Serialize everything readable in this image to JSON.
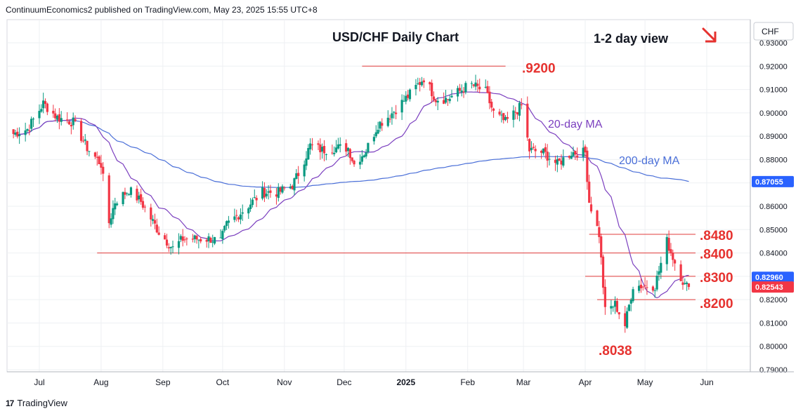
{
  "header": {
    "publisher_line": "ContinuumEconomics2 published on TradingView.com, May 23, 2025 15:55 UTC+8"
  },
  "footer": {
    "brand": "TradingView",
    "logo_glyph": "17"
  },
  "colors": {
    "up_candle": "#089981",
    "down_candle": "#f23645",
    "ma20": "#7b3fbf",
    "ma200": "#4a6fd8",
    "level_line": "#e03b3b",
    "level_text": "#e6322f",
    "last_price_tag": "#f23645",
    "ma_tag": "#2962ff"
  },
  "chart_data": {
    "type": "candlestick",
    "title": "USD/CHF Daily Chart",
    "subtitle": "1-2 day view",
    "outlook_arrow": "down-right-arrow",
    "currency_label": "CHF",
    "x_ticks": [
      "Jul",
      "Aug",
      "Sep",
      "Oct",
      "Nov",
      "Dec",
      "2025",
      "Feb",
      "Mar",
      "Apr",
      "May",
      "Jun"
    ],
    "y_ticks": [
      "0.93000",
      "0.92000",
      "0.91000",
      "0.90000",
      "0.89000",
      "0.88000",
      "0.87000",
      "0.86000",
      "0.85000",
      "0.84000",
      "0.83000",
      "0.82000",
      "0.81000",
      "0.80000",
      "0.79000"
    ],
    "ylim": [
      0.789,
      0.933
    ],
    "price_tags": [
      {
        "value": 0.87055,
        "label": "0.87055",
        "kind": "ma200"
      },
      {
        "value": 0.8296,
        "label": "0.82960",
        "kind": "ma20"
      },
      {
        "value": 0.82543,
        "label": "0.82543",
        "kind": "last"
      }
    ],
    "levels": [
      {
        "value": 0.92,
        "label": ".9200",
        "from": "2024-12-10",
        "to": "2025-02-20"
      },
      {
        "value": 0.848,
        "label": ".8480",
        "from": "2025-04-03",
        "to": "2025-05-28"
      },
      {
        "value": 0.84,
        "label": ".8400",
        "from": "2024-07-30",
        "to": "2025-05-28"
      },
      {
        "value": 0.83,
        "label": ".8300",
        "from": "2025-04-01",
        "to": "2025-05-28"
      },
      {
        "value": 0.82,
        "label": ".8200",
        "from": "2025-04-07",
        "to": "2025-05-28"
      },
      {
        "value": 0.8038,
        "label": ".8038",
        "from": null,
        "to": null
      }
    ],
    "annotations": [
      {
        "text": "20-day MA",
        "kind": "ma20"
      },
      {
        "text": "200-day MA",
        "kind": "ma200"
      }
    ],
    "ohlc_key_points": [
      [
        "2024-06-18",
        0.891
      ],
      [
        "2024-06-25",
        0.893
      ],
      [
        "2024-07-03",
        0.904
      ],
      [
        "2024-07-10",
        0.898
      ],
      [
        "2024-07-18",
        0.896
      ],
      [
        "2024-07-25",
        0.885
      ],
      [
        "2024-08-01",
        0.878
      ],
      [
        "2024-08-05",
        0.853
      ],
      [
        "2024-08-08",
        0.862
      ],
      [
        "2024-08-15",
        0.867
      ],
      [
        "2024-08-21",
        0.862
      ],
      [
        "2024-08-30",
        0.849
      ],
      [
        "2024-09-06",
        0.842
      ],
      [
        "2024-09-11",
        0.846
      ],
      [
        "2024-09-17",
        0.846
      ],
      [
        "2024-09-25",
        0.846
      ],
      [
        "2024-09-30",
        0.845
      ],
      [
        "2024-10-03",
        0.852
      ],
      [
        "2024-10-11",
        0.858
      ],
      [
        "2024-10-21",
        0.866
      ],
      [
        "2024-10-29",
        0.866
      ],
      [
        "2024-11-05",
        0.869
      ],
      [
        "2024-11-08",
        0.874
      ],
      [
        "2024-11-14",
        0.886
      ],
      [
        "2024-11-20",
        0.884
      ],
      [
        "2024-11-26",
        0.885
      ],
      [
        "2024-12-03",
        0.885
      ],
      [
        "2024-12-06",
        0.878
      ],
      [
        "2024-12-12",
        0.884
      ],
      [
        "2024-12-18",
        0.895
      ],
      [
        "2024-12-24",
        0.899
      ],
      [
        "2025-01-03",
        0.908
      ],
      [
        "2025-01-10",
        0.915
      ],
      [
        "2025-01-16",
        0.906
      ],
      [
        "2025-01-22",
        0.906
      ],
      [
        "2025-01-31",
        0.911
      ],
      [
        "2025-02-03",
        0.912
      ],
      [
        "2025-02-10",
        0.909
      ],
      [
        "2025-02-14",
        0.9
      ],
      [
        "2025-02-20",
        0.896
      ],
      [
        "2025-02-28",
        0.903
      ],
      [
        "2025-03-04",
        0.884
      ],
      [
        "2025-03-11",
        0.883
      ],
      [
        "2025-03-18",
        0.878
      ],
      [
        "2025-03-25",
        0.883
      ],
      [
        "2025-04-01",
        0.883
      ],
      [
        "2025-04-03",
        0.862
      ],
      [
        "2025-04-08",
        0.848
      ],
      [
        "2025-04-11",
        0.815
      ],
      [
        "2025-04-16",
        0.818
      ],
      [
        "2025-04-21",
        0.809
      ],
      [
        "2025-04-25",
        0.826
      ],
      [
        "2025-05-01",
        0.826
      ],
      [
        "2025-05-06",
        0.826
      ],
      [
        "2025-05-12",
        0.845
      ],
      [
        "2025-05-16",
        0.836
      ],
      [
        "2025-05-21",
        0.826
      ],
      [
        "2025-05-23",
        0.82543
      ]
    ]
  }
}
